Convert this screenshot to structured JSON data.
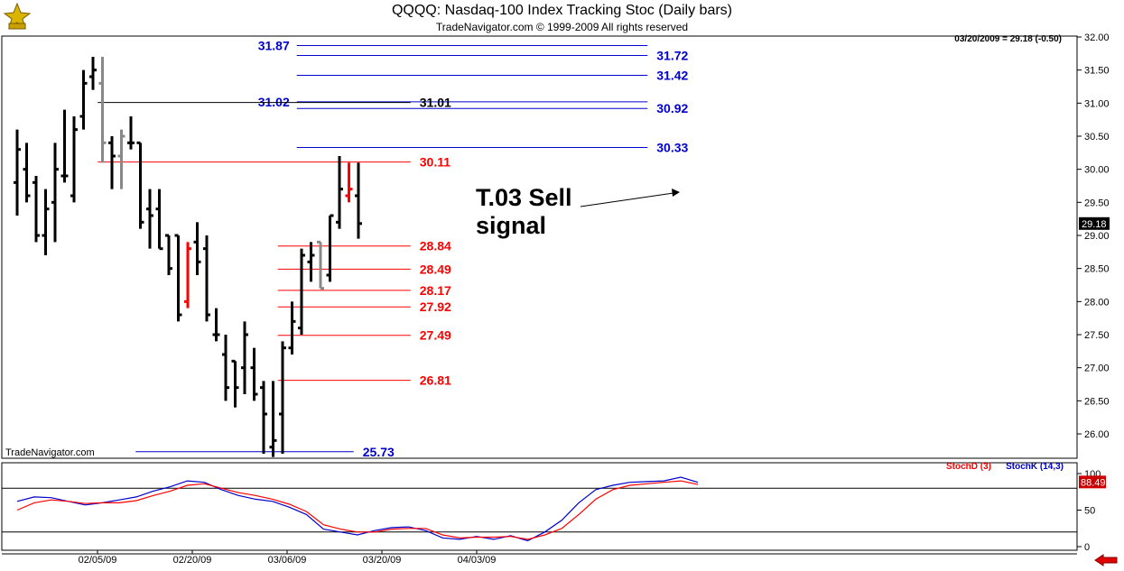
{
  "header": {
    "title": "QQQQ:  Nasdaq-100 Index Tracking Stoc  (Daily bars)",
    "copyright": "TradeNavigator.com © 1999-2009 All rights reserved"
  },
  "last_price_info": "03/20/2009 = 29.18 (-0.50)",
  "watermark": "TradeNavigator.com",
  "annotation": {
    "line1": "T.03 Sell",
    "line2": "signal"
  },
  "chart_data": [
    {
      "type": "ohlc",
      "title": "QQQQ:  Nasdaq-100 Index Tracking Stoc  (Daily bars)",
      "ylim": [
        25.73,
        32.0
      ],
      "y_ticks": [
        "32.00",
        "31.50",
        "31.00",
        "30.50",
        "30.00",
        "29.50",
        "29.00",
        "28.50",
        "28.00",
        "27.50",
        "27.00",
        "26.50",
        "26.00"
      ],
      "x_tick_labels": [
        {
          "label": "02/05/09",
          "index": 8
        },
        {
          "label": "02/20/09",
          "index": 18
        },
        {
          "label": "03/06/09",
          "index": 28
        },
        {
          "label": "03/20/09",
          "index": 38
        },
        {
          "label": "04/03/09",
          "index": 48
        }
      ],
      "current_price_label": "29.18",
      "bar_colors": {
        "normal": "#000000",
        "up_signal": "#22dd22",
        "down_signal": "#ff0000",
        "neutral": "#888888"
      },
      "bars": [
        {
          "o": 29.8,
          "h": 30.6,
          "l": 29.3,
          "c": 30.3,
          "color": "#000000"
        },
        {
          "o": 30.0,
          "h": 30.4,
          "l": 29.5,
          "c": 29.6,
          "color": "#000000"
        },
        {
          "o": 29.8,
          "h": 29.9,
          "l": 28.9,
          "c": 29.0,
          "color": "#000000"
        },
        {
          "o": 29.0,
          "h": 29.7,
          "l": 28.7,
          "c": 29.4,
          "color": "#000000"
        },
        {
          "o": 29.5,
          "h": 30.4,
          "l": 28.9,
          "c": 30.0,
          "color": "#000000"
        },
        {
          "o": 29.9,
          "h": 30.9,
          "l": 29.8,
          "c": 29.9,
          "color": "#000000"
        },
        {
          "o": 29.6,
          "h": 30.8,
          "l": 29.5,
          "c": 30.6,
          "color": "#000000"
        },
        {
          "o": 30.8,
          "h": 31.5,
          "l": 30.6,
          "c": 31.3,
          "color": "#000000"
        },
        {
          "o": 31.4,
          "h": 31.7,
          "l": 31.2,
          "c": 31.5,
          "color": "#000000"
        },
        {
          "o": 31.3,
          "h": 31.7,
          "l": 30.1,
          "c": 30.4,
          "color": "#888888"
        },
        {
          "o": 30.4,
          "h": 30.5,
          "l": 29.7,
          "c": 30.2,
          "color": "#000000"
        },
        {
          "o": 30.2,
          "h": 30.6,
          "l": 29.7,
          "c": 30.5,
          "color": "#888888"
        },
        {
          "o": 30.4,
          "h": 30.8,
          "l": 30.3,
          "c": 30.4,
          "color": "#000000"
        },
        {
          "o": 30.4,
          "h": 30.4,
          "l": 29.1,
          "c": 29.2,
          "color": "#000000"
        },
        {
          "o": 29.4,
          "h": 29.7,
          "l": 28.8,
          "c": 29.3,
          "color": "#000000"
        },
        {
          "o": 29.4,
          "h": 29.7,
          "l": 28.8,
          "c": 28.8,
          "color": "#000000"
        },
        {
          "o": 29.0,
          "h": 29.0,
          "l": 28.4,
          "c": 28.5,
          "color": "#000000"
        },
        {
          "o": 29.0,
          "h": 29.0,
          "l": 27.7,
          "c": 27.8,
          "color": "#000000"
        },
        {
          "o": 28.0,
          "h": 28.9,
          "l": 27.9,
          "c": 28.8,
          "color": "#ff0000"
        },
        {
          "o": 28.9,
          "h": 29.2,
          "l": 28.4,
          "c": 28.6,
          "color": "#000000"
        },
        {
          "o": 28.8,
          "h": 29.0,
          "l": 27.7,
          "c": 27.8,
          "color": "#000000"
        },
        {
          "o": 27.5,
          "h": 27.9,
          "l": 27.4,
          "c": 27.5,
          "color": "#000000"
        },
        {
          "o": 27.2,
          "h": 27.5,
          "l": 26.5,
          "c": 26.7,
          "color": "#000000"
        },
        {
          "o": 27.1,
          "h": 27.1,
          "l": 26.4,
          "c": 26.7,
          "color": "#000000"
        },
        {
          "o": 27.0,
          "h": 27.7,
          "l": 26.6,
          "c": 27.5,
          "color": "#000000"
        },
        {
          "o": 27.0,
          "h": 27.3,
          "l": 26.5,
          "c": 26.6,
          "color": "#000000"
        },
        {
          "o": 26.7,
          "h": 26.8,
          "l": 25.7,
          "c": 26.3,
          "color": "#000000"
        },
        {
          "o": 25.8,
          "h": 26.8,
          "l": 25.65,
          "c": 25.9,
          "color": "#000000"
        },
        {
          "o": 26.3,
          "h": 27.4,
          "l": 25.7,
          "c": 27.3,
          "color": "#000000"
        },
        {
          "o": 27.3,
          "h": 28.0,
          "l": 27.2,
          "c": 27.7,
          "color": "#000000"
        },
        {
          "o": 27.6,
          "h": 28.8,
          "l": 27.5,
          "c": 28.7,
          "color": "#000000"
        },
        {
          "o": 28.6,
          "h": 28.9,
          "l": 28.3,
          "c": 28.7,
          "color": "#000000"
        },
        {
          "o": 28.9,
          "h": 28.9,
          "l": 28.2,
          "c": 28.2,
          "color": "#888888"
        },
        {
          "o": 28.4,
          "h": 29.3,
          "l": 28.3,
          "c": 29.3,
          "color": "#000000"
        },
        {
          "o": 29.2,
          "h": 30.2,
          "l": 29.1,
          "c": 29.7,
          "color": "#000000"
        },
        {
          "o": 29.6,
          "h": 30.1,
          "l": 29.5,
          "c": 29.7,
          "color": "#ff0000"
        },
        {
          "o": 29.6,
          "h": 30.1,
          "l": 28.95,
          "c": 29.18,
          "color": "#000000"
        }
      ],
      "level_lines": [
        {
          "value": "31.87",
          "price": 31.87,
          "color": "#0000cc",
          "from": 29.5,
          "to": 66.5,
          "label_side": "left"
        },
        {
          "value": "31.72",
          "price": 31.72,
          "color": "#0000cc",
          "from": 29.5,
          "to": 66.5,
          "label_side": "right"
        },
        {
          "value": "31.42",
          "price": 31.42,
          "color": "#0000cc",
          "from": 29.5,
          "to": 66.5,
          "label_side": "right"
        },
        {
          "value": "31.02",
          "price": 31.02,
          "color": "#0000cc",
          "from": 29.5,
          "to": 66.5,
          "label_side": "mid"
        },
        {
          "value": "30.92",
          "price": 30.92,
          "color": "#0000cc",
          "from": 29.5,
          "to": 66.5,
          "label_side": "right"
        },
        {
          "value": "30.33",
          "price": 30.33,
          "color": "#0000cc",
          "from": 29.5,
          "to": 66.5,
          "label_side": "right"
        },
        {
          "value": "31.01",
          "price": 31.01,
          "color": "#000000",
          "from": 8.5,
          "to": 41.5,
          "label_side": "right"
        },
        {
          "value": "30.11",
          "price": 30.11,
          "color": "#ff0000",
          "from": 8.5,
          "to": 41.5,
          "label_side": "right"
        },
        {
          "value": "28.84",
          "price": 28.84,
          "color": "#ff0000",
          "from": 27.5,
          "to": 41.5,
          "label_side": "right"
        },
        {
          "value": "28.49",
          "price": 28.49,
          "color": "#ff0000",
          "from": 27.5,
          "to": 41.5,
          "label_side": "right"
        },
        {
          "value": "28.17",
          "price": 28.17,
          "color": "#ff0000",
          "from": 27.5,
          "to": 41.5,
          "label_side": "right"
        },
        {
          "value": "27.92",
          "price": 27.92,
          "color": "#ff0000",
          "from": 27.5,
          "to": 41.5,
          "label_side": "right"
        },
        {
          "value": "27.49",
          "price": 27.49,
          "color": "#ff0000",
          "from": 27.5,
          "to": 41.5,
          "label_side": "right"
        },
        {
          "value": "26.81",
          "price": 26.81,
          "color": "#ff0000",
          "from": 27.5,
          "to": 41.5,
          "label_side": "right"
        },
        {
          "value": "25.73",
          "price": 25.73,
          "color": "#0000cc",
          "from": 12.5,
          "to": 35.5,
          "label_side": "right"
        }
      ]
    },
    {
      "type": "line",
      "legend": [
        {
          "name": "StochD (3)",
          "color": "#ff0000"
        },
        {
          "name": "StochK (14,3)",
          "color": "#0000cc"
        }
      ],
      "ylim": [
        0,
        100
      ],
      "y_ticks": [
        "100",
        "50",
        "0"
      ],
      "reference_lines": [
        80,
        20
      ],
      "current_value_label": "88.49",
      "series": [
        {
          "name": "StochK (14,3)",
          "color": "#0000cc",
          "values": [
            62,
            68,
            67,
            62,
            57,
            60,
            64,
            68,
            76,
            82,
            90,
            88,
            78,
            70,
            65,
            62,
            54,
            44,
            24,
            20,
            16,
            22,
            26,
            27,
            22,
            12,
            10,
            14,
            10,
            15,
            8,
            20,
            36,
            60,
            78,
            84,
            88,
            89,
            90,
            95,
            88
          ]
        },
        {
          "name": "StochD (3)",
          "color": "#ff0000",
          "values": [
            50,
            60,
            64,
            62,
            59,
            60,
            60,
            63,
            70,
            76,
            84,
            86,
            80,
            74,
            70,
            65,
            58,
            48,
            30,
            24,
            20,
            20,
            24,
            25,
            25,
            16,
            12,
            13,
            13,
            14,
            10,
            16,
            25,
            44,
            65,
            78,
            84,
            86,
            88,
            90,
            85
          ]
        }
      ]
    }
  ]
}
